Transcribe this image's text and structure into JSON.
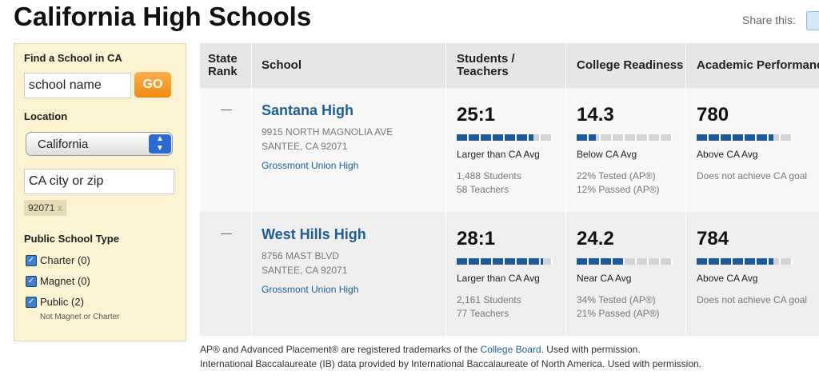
{
  "header": {
    "title": "California High Schools",
    "share": "Share this:"
  },
  "sidebar": {
    "heading": "Find a School in CA",
    "search": "school name",
    "go": "GO",
    "location_label": "Location",
    "state": "California",
    "city": "CA city or zip",
    "filter_tag": "92071",
    "tag_remove": "x",
    "type_label": "Public School Type",
    "types": [
      {
        "label": "Charter (0)",
        "checked": true
      },
      {
        "label": "Magnet (0)",
        "checked": true
      },
      {
        "label": "Public (2)",
        "checked": true
      }
    ],
    "public_note": "Not Magnet or Charter"
  },
  "table": {
    "headers": [
      "State Rank",
      "School",
      "Students / Teachers",
      "College Readiness",
      "Academic Performance"
    ],
    "meter_max": 10,
    "rows": [
      {
        "rank": "—",
        "name": "Santana High",
        "address": [
          "9915 NORTH MAGNOLIA AVE",
          "SANTEE, CA 92071"
        ],
        "district": "Grossmont Union High",
        "ratio": "25:1",
        "ratio_meter": 8,
        "ratio_note": "Larger than CA Avg",
        "students": "1,488 Students",
        "teachers": "58 Teachers",
        "readiness": "14.3",
        "readiness_meter": 2,
        "readiness_note": "Below CA Avg",
        "tested": "22% Tested (AP®)",
        "passed": "12% Passed (AP®)",
        "academic": "780",
        "academic_meter": 8,
        "academic_note": "Above CA Avg",
        "goal": "Does not achieve CA goal"
      },
      {
        "rank": "—",
        "name": "West Hills High",
        "address": [
          "8756 MAST BLVD",
          "SANTEE, CA 92071"
        ],
        "district": "Grossmont Union High",
        "ratio": "28:1",
        "ratio_meter": 9,
        "ratio_note": "Larger than CA Avg",
        "students": "2,161 Students",
        "teachers": "77 Teachers",
        "readiness": "24.2",
        "readiness_meter": 5,
        "readiness_note": "Near CA Avg",
        "tested": "34% Tested (AP®)",
        "passed": "21% Passed (AP®)",
        "academic": "784",
        "academic_meter": 8,
        "academic_note": "Above CA Avg",
        "goal": "Does not achieve CA goal"
      }
    ]
  },
  "footer": {
    "line1_start": "AP® and Advanced Placement® are registered trademarks of the",
    "line1_link": "College Board",
    "line1_end": ". Used with permission.",
    "line2": "International Baccalaureate (IB) data provided by International Baccalaureate of North America. Used with permission."
  }
}
